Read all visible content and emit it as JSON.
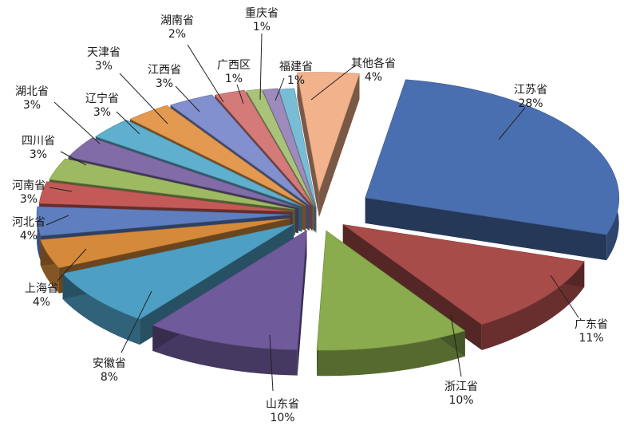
{
  "chart_data": {
    "type": "pie",
    "title": "",
    "categories": [
      "江苏省",
      "广东省",
      "浙江省",
      "山东省",
      "安徽省",
      "上海省",
      "河北省",
      "河南省",
      "四川省",
      "湖北省",
      "辽宁省",
      "天津省",
      "江西省",
      "湖南省",
      "广西区",
      "重庆省",
      "福建省",
      "其他各省"
    ],
    "values": [
      28,
      11,
      10,
      10,
      8,
      4,
      4,
      3,
      3,
      3,
      3,
      3,
      3,
      2,
      1,
      1,
      1,
      4
    ],
    "value_labels": [
      "28%",
      "11%",
      "10%",
      "10%",
      "8%",
      "4%",
      "4%",
      "3%",
      "3%",
      "3%",
      "3%",
      "3%",
      "3%",
      "2%",
      "1%",
      "1%",
      "1%",
      "4%"
    ],
    "colors": [
      "#4a6fb0",
      "#a84c4a",
      "#8aab4e",
      "#6f5a9c",
      "#4e9fc4",
      "#d48a3a",
      "#5f7ec0",
      "#c45a58",
      "#9dba63",
      "#826ca8",
      "#5fb0cf",
      "#e39a50",
      "#8290cf",
      "#d47a78",
      "#a9c47a",
      "#9e8bbd",
      "#78bcd6",
      "#f2b28c"
    ],
    "legend": "none",
    "style": "3d-exploded"
  }
}
